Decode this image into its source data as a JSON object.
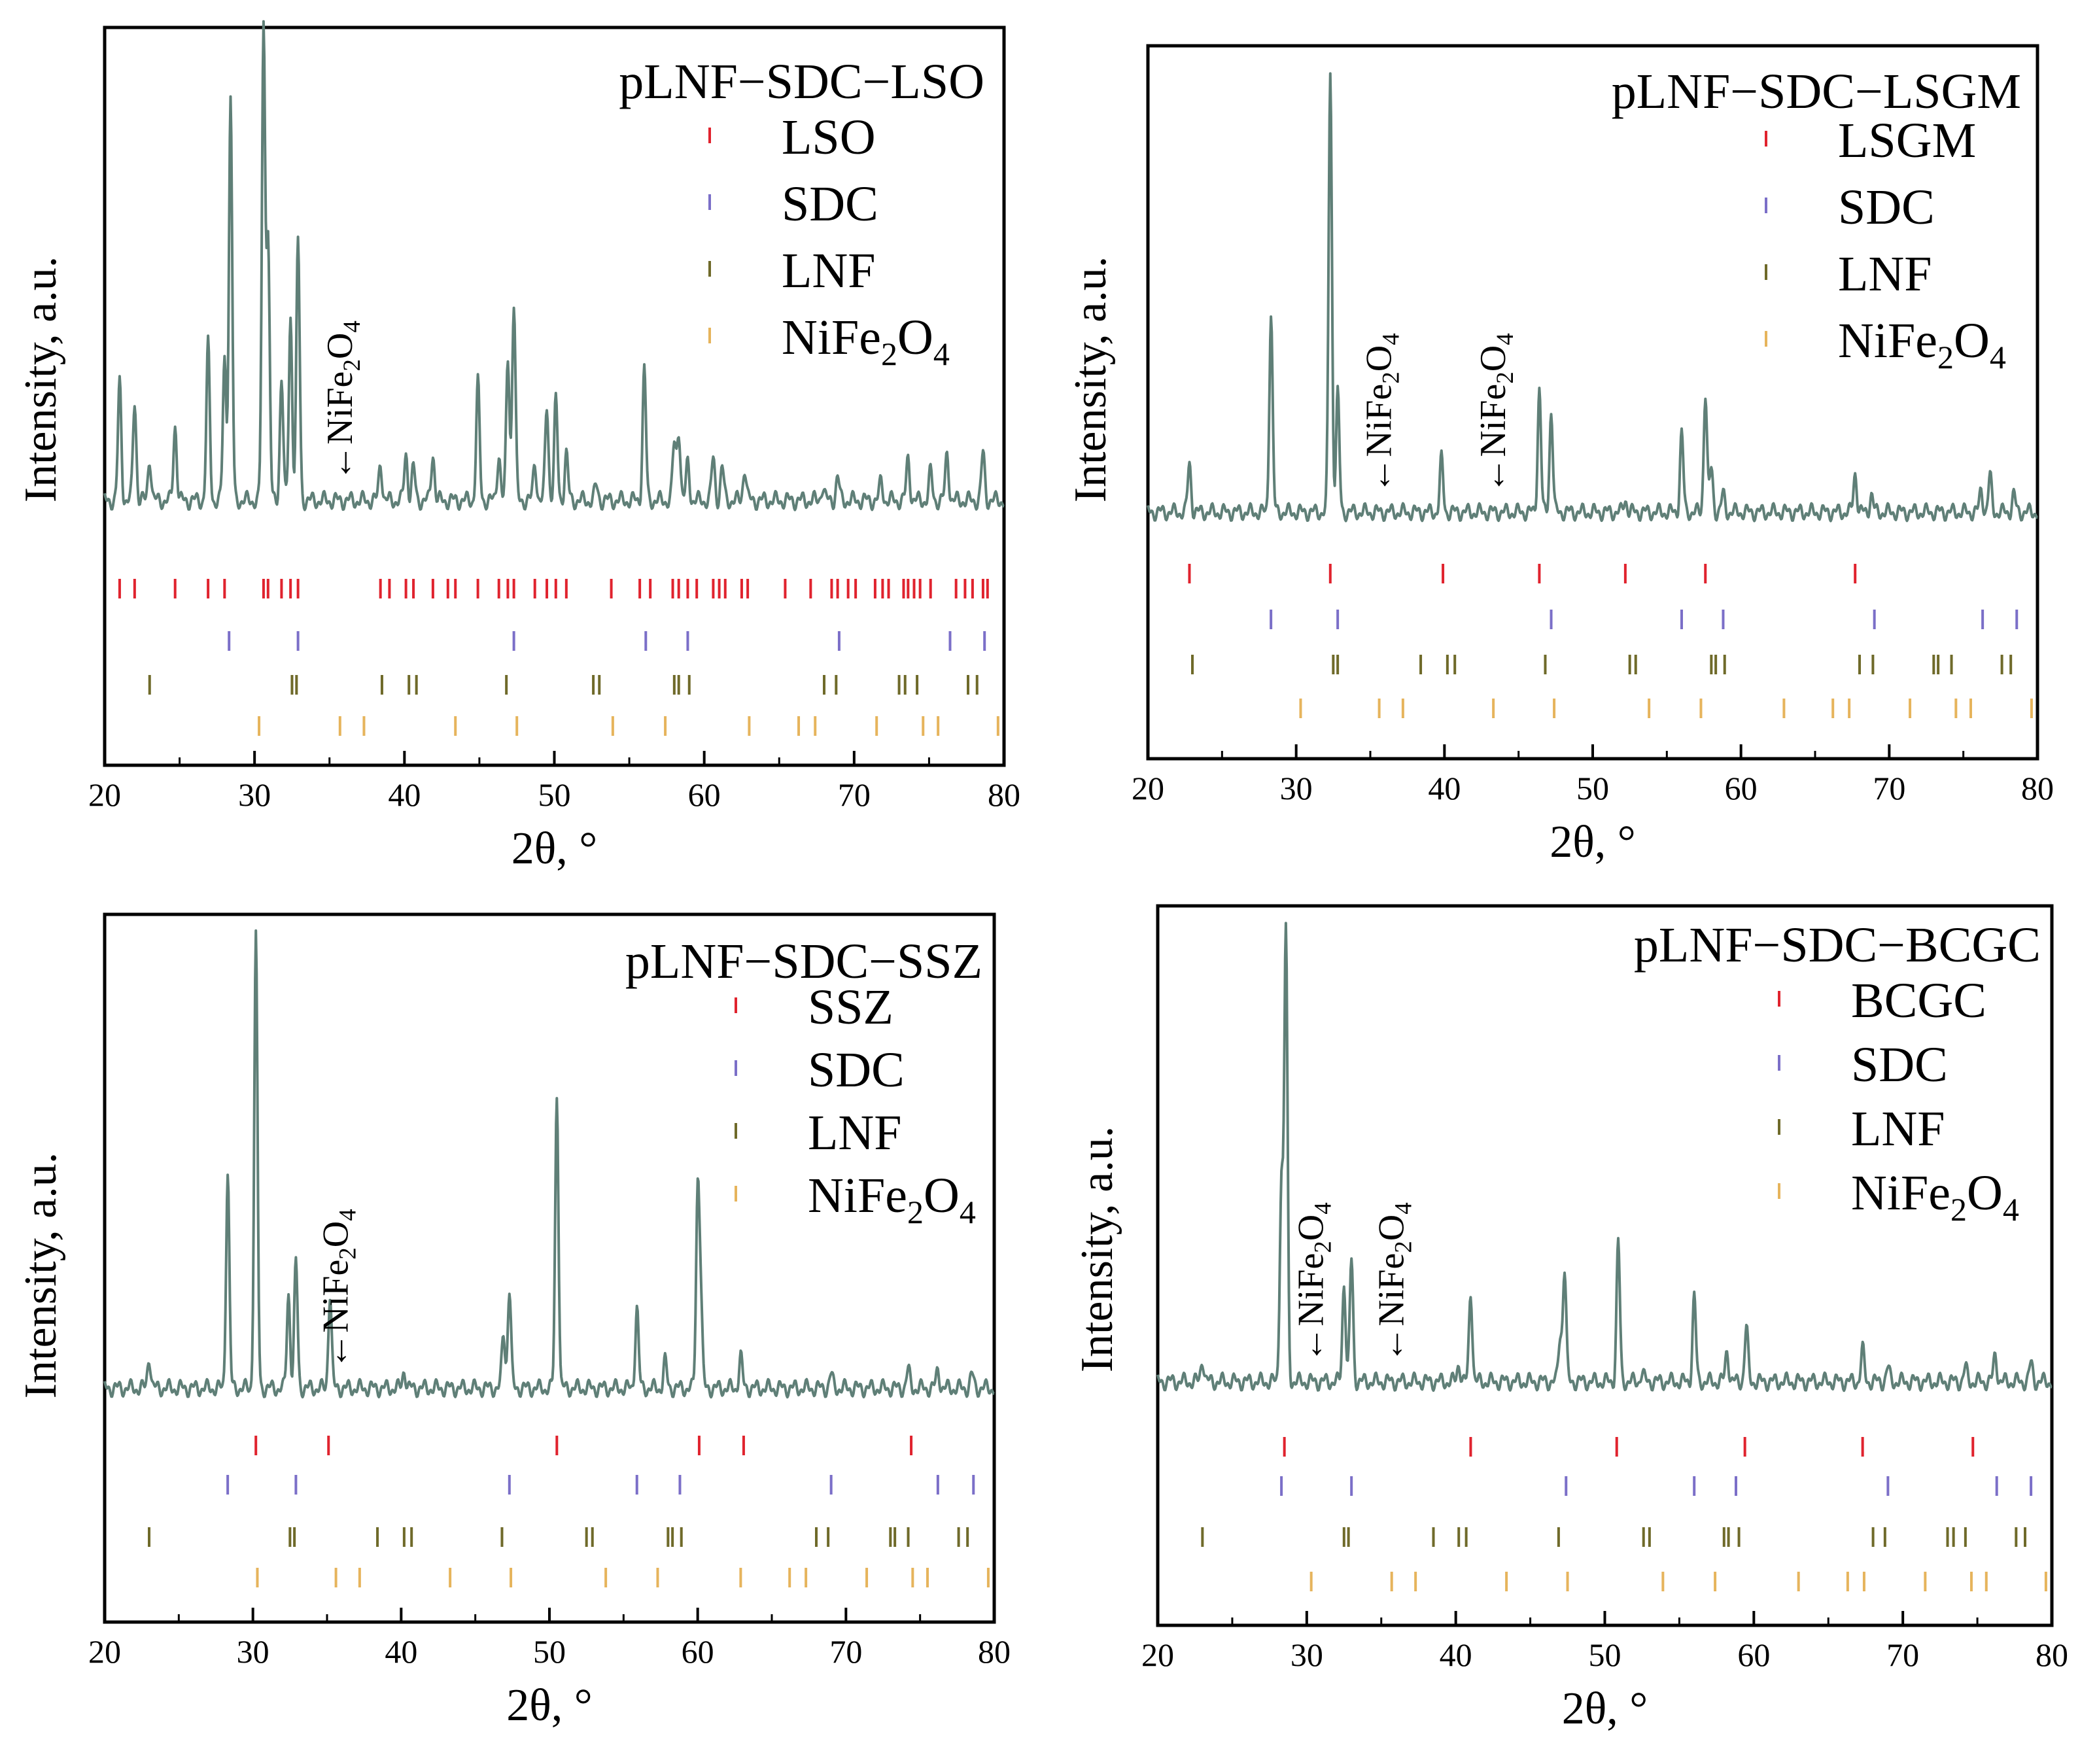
{
  "chart_data": [
    {
      "type": "line",
      "title": "pLNF−SDC−LSO",
      "xlabel": "2θ, °",
      "ylabel": "Intensity, a.u.",
      "xlim": [
        20,
        80
      ],
      "xticks": [
        20,
        30,
        40,
        50,
        60,
        70,
        80
      ],
      "line_color": "#5f7f77",
      "pattern": {
        "base": 0.09,
        "peaks": [
          [
            21.0,
            0.25
          ],
          [
            22.0,
            0.21
          ],
          [
            23.0,
            0.09
          ],
          [
            24.7,
            0.16
          ],
          [
            26.9,
            0.33
          ],
          [
            28.0,
            0.3
          ],
          [
            28.4,
            0.85
          ],
          [
            30.6,
            1.0
          ],
          [
            30.9,
            0.55
          ],
          [
            31.8,
            0.26
          ],
          [
            32.4,
            0.39
          ],
          [
            32.9,
            0.55
          ],
          [
            38.4,
            0.08
          ],
          [
            40.1,
            0.1
          ],
          [
            40.6,
            0.07
          ],
          [
            41.9,
            0.1
          ],
          [
            44.9,
            0.25
          ],
          [
            46.3,
            0.1
          ],
          [
            46.9,
            0.3
          ],
          [
            47.3,
            0.42
          ],
          [
            48.7,
            0.08
          ],
          [
            49.5,
            0.2
          ],
          [
            50.1,
            0.21
          ],
          [
            50.8,
            0.1
          ],
          [
            52.8,
            0.03
          ],
          [
            56.0,
            0.28
          ],
          [
            58.0,
            0.12
          ],
          [
            58.3,
            0.15
          ],
          [
            58.9,
            0.08
          ],
          [
            60.6,
            0.09
          ],
          [
            61.2,
            0.07
          ],
          [
            62.7,
            0.07
          ],
          [
            67.9,
            0.03
          ],
          [
            68.9,
            0.05
          ],
          [
            71.8,
            0.04
          ],
          [
            73.6,
            0.09
          ],
          [
            75.1,
            0.06
          ],
          [
            76.2,
            0.1
          ],
          [
            78.6,
            0.1
          ]
        ]
      },
      "series": [
        {
          "name": "LSO",
          "color": "#e0232e",
          "positions": [
            21.0,
            22.0,
            24.7,
            26.9,
            28.0,
            30.6,
            30.9,
            31.8,
            32.4,
            32.9,
            38.4,
            39.0,
            40.1,
            40.6,
            41.9,
            42.9,
            43.4,
            44.9,
            46.3,
            46.9,
            47.3,
            48.7,
            49.5,
            50.1,
            50.8,
            53.8,
            55.7,
            56.4,
            57.9,
            58.3,
            58.9,
            59.5,
            60.6,
            61.0,
            61.4,
            62.5,
            62.9,
            65.4,
            67.1,
            68.5,
            68.9,
            69.6,
            70.1,
            71.4,
            71.9,
            72.3,
            73.3,
            73.6,
            74.0,
            74.4,
            75.1,
            76.8,
            77.4,
            77.9,
            78.6,
            78.9
          ]
        },
        {
          "name": "SDC",
          "color": "#7b6fc8",
          "positions": [
            28.3,
            32.9,
            47.3,
            56.1,
            58.9,
            69.0,
            76.4,
            78.7
          ]
        },
        {
          "name": "LNF",
          "color": "#6f6a2a",
          "positions": [
            23.0,
            32.5,
            32.8,
            38.5,
            40.3,
            40.8,
            46.8,
            52.6,
            53.0,
            58.0,
            58.3,
            59.0,
            68.0,
            68.8,
            73.0,
            73.4,
            74.2,
            77.6,
            78.2
          ]
        },
        {
          "name": "NiFe2O4",
          "color": "#e6b45c",
          "positions": [
            30.3,
            35.7,
            37.3,
            43.4,
            47.5,
            53.9,
            57.4,
            63.0,
            66.3,
            67.4,
            71.5,
            74.6,
            75.6,
            79.6
          ]
        }
      ],
      "annotations": [
        {
          "text": "NiFe2O4",
          "x": 35.7
        }
      ]
    },
    {
      "type": "line",
      "title": "pLNF−SDC−LSGM",
      "xlabel": "2θ, °",
      "ylabel": "Intensity, a.u.",
      "xlim": [
        20,
        80
      ],
      "xticks": [
        20,
        30,
        40,
        50,
        60,
        70,
        80
      ],
      "line_color": "#5f7f77",
      "pattern": {
        "base": 0.04,
        "peaks": [
          [
            22.8,
            0.11
          ],
          [
            28.3,
            0.45
          ],
          [
            32.3,
            1.0
          ],
          [
            32.8,
            0.27
          ],
          [
            39.8,
            0.12
          ],
          [
            46.4,
            0.28
          ],
          [
            47.2,
            0.23
          ],
          [
            52.2,
            0.03
          ],
          [
            56.0,
            0.18
          ],
          [
            57.6,
            0.27
          ],
          [
            58.0,
            0.1
          ],
          [
            58.8,
            0.04
          ],
          [
            67.7,
            0.09
          ],
          [
            68.8,
            0.04
          ],
          [
            76.2,
            0.05
          ],
          [
            76.8,
            0.08
          ],
          [
            78.4,
            0.04
          ]
        ]
      },
      "series": [
        {
          "name": "LSGM",
          "color": "#e0232e",
          "positions": [
            22.8,
            32.3,
            39.9,
            46.4,
            52.2,
            57.6,
            67.7
          ]
        },
        {
          "name": "SDC",
          "color": "#7b6fc8",
          "positions": [
            28.3,
            32.8,
            47.2,
            56.0,
            58.8,
            69.0,
            76.3,
            78.6
          ]
        },
        {
          "name": "LNF",
          "color": "#6f6a2a",
          "positions": [
            23.0,
            32.5,
            32.8,
            38.4,
            40.2,
            40.7,
            46.8,
            52.5,
            52.9,
            58.0,
            58.3,
            58.9,
            68.0,
            68.9,
            73.0,
            73.3,
            74.2,
            77.6,
            78.2
          ]
        },
        {
          "name": "NiFe2O4",
          "color": "#e6b45c",
          "positions": [
            30.3,
            35.6,
            37.2,
            43.3,
            47.4,
            53.8,
            57.3,
            62.9,
            66.2,
            67.3,
            71.4,
            74.5,
            75.5,
            79.6
          ]
        }
      ],
      "annotations": [
        {
          "text": "NiFe2O4",
          "x": 35.6
        },
        {
          "text": "NiFe2O4",
          "x": 43.3
        }
      ]
    },
    {
      "type": "line",
      "title": "pLNF−SDC−SSZ",
      "xlabel": "2θ, °",
      "ylabel": "Intensity, a.u.",
      "xlim": [
        20,
        80
      ],
      "xticks": [
        20,
        30,
        40,
        50,
        60,
        70,
        80
      ],
      "line_color": "#5f7f77",
      "pattern": {
        "base": 0.04,
        "peaks": [
          [
            23.0,
            0.07
          ],
          [
            28.3,
            0.48
          ],
          [
            30.2,
            1.0
          ],
          [
            32.4,
            0.21
          ],
          [
            32.9,
            0.28
          ],
          [
            35.2,
            0.21
          ],
          [
            40.2,
            0.04
          ],
          [
            46.9,
            0.12
          ],
          [
            47.3,
            0.22
          ],
          [
            50.5,
            0.65
          ],
          [
            55.9,
            0.18
          ],
          [
            57.8,
            0.06
          ],
          [
            60.0,
            0.43
          ],
          [
            60.2,
            0.2
          ],
          [
            62.9,
            0.07
          ],
          [
            69.0,
            0.03
          ],
          [
            74.2,
            0.04
          ],
          [
            76.2,
            0.04
          ],
          [
            78.5,
            0.03
          ]
        ]
      },
      "series": [
        {
          "name": "SSZ",
          "color": "#e0232e",
          "positions": [
            30.2,
            35.1,
            50.5,
            60.1,
            63.1,
            74.4
          ]
        },
        {
          "name": "SDC",
          "color": "#7b6fc8",
          "positions": [
            28.3,
            32.9,
            47.3,
            55.9,
            58.8,
            69.0,
            76.2,
            78.6
          ]
        },
        {
          "name": "LNF",
          "color": "#6f6a2a",
          "positions": [
            23.0,
            32.5,
            32.8,
            38.4,
            40.2,
            40.7,
            46.8,
            52.5,
            52.9,
            58.0,
            58.3,
            58.9,
            68.0,
            68.8,
            73.0,
            73.3,
            74.2,
            77.6,
            78.2
          ]
        },
        {
          "name": "NiFe2O4",
          "color": "#e6b45c",
          "positions": [
            30.3,
            35.6,
            37.2,
            43.3,
            47.4,
            53.8,
            57.3,
            62.9,
            66.2,
            67.3,
            71.4,
            74.5,
            75.5,
            79.6
          ]
        }
      ],
      "annotations": [
        {
          "text": "NiFe2O4",
          "x": 35.6
        }
      ]
    },
    {
      "type": "line",
      "title": "pLNF−SDC−BCGC",
      "xlabel": "2θ, °",
      "ylabel": "Intensity, a.u.",
      "xlim": [
        20,
        80
      ],
      "xticks": [
        20,
        30,
        40,
        50,
        60,
        70,
        80
      ],
      "line_color": "#5f7f77",
      "pattern": {
        "base": 0.04,
        "peaks": [
          [
            23.0,
            0.05
          ],
          [
            28.3,
            0.45
          ],
          [
            28.6,
            1.0
          ],
          [
            32.5,
            0.22
          ],
          [
            33.0,
            0.27
          ],
          [
            40.2,
            0.04
          ],
          [
            41.0,
            0.2
          ],
          [
            47.0,
            0.1
          ],
          [
            47.3,
            0.25
          ],
          [
            50.9,
            0.31
          ],
          [
            52.5,
            0.02
          ],
          [
            56.0,
            0.19
          ],
          [
            58.2,
            0.07
          ],
          [
            59.5,
            0.12
          ],
          [
            67.3,
            0.07
          ],
          [
            69.0,
            0.03
          ],
          [
            74.2,
            0.03
          ],
          [
            76.2,
            0.06
          ],
          [
            78.6,
            0.04
          ]
        ]
      },
      "series": [
        {
          "name": "BCGC",
          "color": "#e0232e",
          "positions": [
            28.5,
            41.0,
            50.8,
            59.4,
            67.3,
            74.7
          ]
        },
        {
          "name": "SDC",
          "color": "#7b6fc8",
          "positions": [
            28.3,
            33.0,
            47.4,
            56.0,
            58.8,
            69.0,
            76.3,
            78.6
          ]
        },
        {
          "name": "LNF",
          "color": "#6f6a2a",
          "positions": [
            23.0,
            32.5,
            32.8,
            38.5,
            40.2,
            40.7,
            46.9,
            52.6,
            53.0,
            58.0,
            58.3,
            59.0,
            68.0,
            68.8,
            73.0,
            73.4,
            74.2,
            77.6,
            78.2
          ]
        },
        {
          "name": "NiFe2O4",
          "color": "#e6b45c",
          "positions": [
            30.3,
            35.7,
            37.3,
            43.4,
            47.5,
            53.9,
            57.4,
            63.0,
            66.3,
            67.4,
            71.5,
            74.6,
            75.6,
            79.6
          ]
        }
      ],
      "annotations": [
        {
          "text": "NiFe2O4",
          "x": 30.3
        },
        {
          "text": "NiFe2O4",
          "x": 35.7
        }
      ]
    }
  ]
}
